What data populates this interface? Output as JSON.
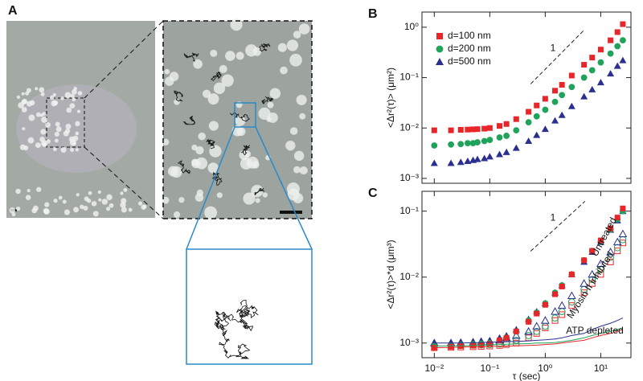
{
  "panel_a": {
    "label": "A"
  },
  "chart_data": [
    {
      "type": "scatter",
      "panel_label": "B",
      "y_label": "<Δr²(τ)> (μm²)",
      "slope_label": "1",
      "log_x": true,
      "log_y": true,
      "legend": "upper left",
      "xlim": [
        0.006,
        35
      ],
      "xticks": [
        0.01,
        0.1,
        1,
        10
      ],
      "ylim": [
        0.0008,
        2
      ],
      "yticks": [
        {
          "value": 0.001,
          "label": "10⁻³"
        },
        {
          "value": 0.01,
          "label": "10⁻²"
        },
        {
          "value": 0.1,
          "label": "10⁻¹"
        },
        {
          "value": 1,
          "label": "10⁰"
        }
      ],
      "x": [
        0.01,
        0.02,
        0.03,
        0.04,
        0.05,
        0.06,
        0.08,
        0.1,
        0.15,
        0.2,
        0.3,
        0.5,
        0.7,
        1,
        1.5,
        2,
        3,
        5,
        7,
        10,
        15,
        20,
        25
      ],
      "series": [
        {
          "name": "d=100 nm",
          "color": "#e8262a",
          "marker": "square",
          "filled": true,
          "values": [
            0.009,
            0.009,
            0.0092,
            0.0093,
            0.0094,
            0.0095,
            0.0097,
            0.01,
            0.011,
            0.012,
            0.015,
            0.021,
            0.028,
            0.038,
            0.055,
            0.072,
            0.11,
            0.18,
            0.25,
            0.36,
            0.55,
            0.8,
            1.15
          ]
        },
        {
          "name": "d=200 nm",
          "color": "#1fa35a",
          "marker": "circle",
          "filled": true,
          "values": [
            0.0045,
            0.0047,
            0.0048,
            0.005,
            0.005,
            0.0052,
            0.0055,
            0.0058,
            0.0065,
            0.007,
            0.009,
            0.013,
            0.017,
            0.023,
            0.033,
            0.045,
            0.065,
            0.1,
            0.14,
            0.2,
            0.3,
            0.42,
            0.55
          ]
        },
        {
          "name": "d=500 nm",
          "color": "#2b2f8f",
          "marker": "triangle",
          "filled": true,
          "values": [
            0.002,
            0.002,
            0.0021,
            0.0022,
            0.0023,
            0.0024,
            0.0025,
            0.0027,
            0.003,
            0.0033,
            0.004,
            0.0055,
            0.0072,
            0.0095,
            0.014,
            0.018,
            0.027,
            0.042,
            0.058,
            0.08,
            0.12,
            0.17,
            0.22
          ]
        }
      ]
    },
    {
      "type": "scatter",
      "panel_label": "C",
      "x_label": "τ (sec)",
      "y_label": "<Δr²(τ)>*d (μm³)",
      "slope_label": "1",
      "log_x": true,
      "log_y": true,
      "annotations": [
        "Untreated",
        "Myosin II inhibited",
        "ATP depleted"
      ],
      "xlim": [
        0.006,
        35
      ],
      "xticks": [
        {
          "value": 0.01,
          "label": "10⁻²"
        },
        {
          "value": 0.1,
          "label": "10⁻¹"
        },
        {
          "value": 1,
          "label": "10⁰"
        },
        {
          "value": 10,
          "label": "10¹"
        }
      ],
      "ylim": [
        0.0006,
        0.2
      ],
      "yticks": [
        {
          "value": 0.001,
          "label": "10⁻³"
        },
        {
          "value": 0.01,
          "label": "10⁻²"
        },
        {
          "value": 0.1,
          "label": "10⁻¹"
        }
      ],
      "x": [
        0.01,
        0.02,
        0.03,
        0.05,
        0.07,
        0.1,
        0.15,
        0.2,
        0.3,
        0.5,
        0.7,
        1,
        1.5,
        2,
        3,
        5,
        7,
        10,
        15,
        20,
        25
      ],
      "series": [
        {
          "color": "#e8262a",
          "marker": "square",
          "filled": false,
          "values": [
            0.00085,
            0.00086,
            0.00087,
            0.00088,
            0.00089,
            0.0009,
            0.00092,
            0.00095,
            0.001,
            0.0012,
            0.0014,
            0.0017,
            0.0022,
            0.0027,
            0.0037,
            0.0058,
            0.008,
            0.011,
            0.017,
            0.025,
            0.033
          ]
        },
        {
          "color": "#1fa35a",
          "marker": "circle",
          "filled": false,
          "values": [
            0.0009,
            0.00091,
            0.00092,
            0.00093,
            0.00094,
            0.00095,
            0.00097,
            0.001,
            0.0011,
            0.0013,
            0.0015,
            0.0018,
            0.0024,
            0.003,
            0.0042,
            0.0065,
            0.0092,
            0.013,
            0.02,
            0.028,
            0.037
          ]
        },
        {
          "color": "#2b2f8f",
          "marker": "triangle",
          "filled": false,
          "values": [
            0.001,
            0.001,
            0.00101,
            0.00102,
            0.00103,
            0.00105,
            0.0011,
            0.0012,
            0.0013,
            0.0015,
            0.0018,
            0.0022,
            0.003,
            0.0037,
            0.0052,
            0.008,
            0.011,
            0.016,
            0.024,
            0.034,
            0.045
          ]
        },
        {
          "color": "#2b2f8f",
          "marker": "triangle",
          "filled": true,
          "values": [
            0.001,
            0.00102,
            0.00104,
            0.00106,
            0.00108,
            0.0011,
            0.0012,
            0.0013,
            0.0016,
            0.0023,
            0.003,
            0.004,
            0.0058,
            0.0075,
            0.011,
            0.017,
            0.024,
            0.034,
            0.052,
            0.072,
            0.1
          ]
        },
        {
          "color": "#1fa35a",
          "marker": "circle",
          "filled": true,
          "values": [
            0.0009,
            0.00092,
            0.00094,
            0.00096,
            0.00098,
            0.001,
            0.0011,
            0.0012,
            0.0015,
            0.0022,
            0.0029,
            0.004,
            0.0058,
            0.0075,
            0.011,
            0.018,
            0.025,
            0.035,
            0.053,
            0.075,
            0.1
          ]
        },
        {
          "color": "#e8262a",
          "marker": "square",
          "filled": true,
          "values": [
            0.00085,
            0.00088,
            0.0009,
            0.00092,
            0.00094,
            0.00097,
            0.0011,
            0.0012,
            0.0015,
            0.0021,
            0.0028,
            0.0038,
            0.0055,
            0.0072,
            0.011,
            0.018,
            0.025,
            0.036,
            0.055,
            0.08,
            0.11
          ]
        },
        {
          "color": "#e8262a",
          "marker": null,
          "values": [
            0.00085,
            0.00086,
            0.00087,
            0.00088,
            0.00088,
            0.00089,
            0.0009,
            0.0009,
            0.00091,
            0.00092,
            0.00093,
            0.00095,
            0.00097,
            0.001,
            0.00105,
            0.0011,
            0.0012,
            0.0013,
            0.0014,
            0.0015,
            0.0016
          ]
        },
        {
          "color": "#1fa35a",
          "marker": null,
          "values": [
            0.0009,
            0.00091,
            0.00091,
            0.00092,
            0.00093,
            0.00094,
            0.00095,
            0.00096,
            0.00097,
            0.00098,
            0.001,
            0.001,
            0.00102,
            0.00105,
            0.0011,
            0.0012,
            0.0013,
            0.0014,
            0.0015,
            0.0016,
            0.0017
          ]
        },
        {
          "color": "#2b2f8f",
          "marker": null,
          "values": [
            0.001,
            0.001,
            0.001,
            0.00101,
            0.00102,
            0.00103,
            0.00104,
            0.00105,
            0.00106,
            0.00108,
            0.0011,
            0.00112,
            0.00115,
            0.0012,
            0.0013,
            0.0014,
            0.0016,
            0.0018,
            0.002,
            0.0022,
            0.0024
          ]
        }
      ]
    }
  ]
}
